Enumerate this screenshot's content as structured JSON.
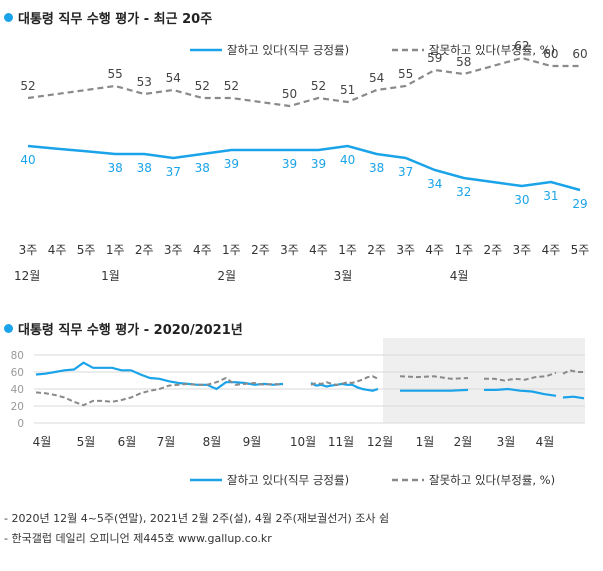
{
  "colors": {
    "approve": "#1aa3e8",
    "disapprove": "#8a8a8a",
    "shade": "#efefef",
    "grid": "#d8d8d8"
  },
  "chart1": {
    "title": "대통령 직무 수행 평가 - 최근 20주",
    "legend": {
      "approve": "잘하고 있다(직무 긍정률)",
      "disapprove": "잘못하고 있다(부정률, %)"
    }
  },
  "chart2": {
    "title": "대통령 직무 수행 평가 - 2020/2021년",
    "legend": {
      "approve": "잘하고 있다(직무 긍정률)",
      "disapprove": "잘못하고 있다(부정률, %)"
    }
  },
  "notes": [
    "- 2020년 12월 4~5주(연말), 2021년 2월 2주(설), 4월 2주(재보궐선거) 조사 쉼",
    "- 한국갤럽 데일리 오피니언 제445호 www.gallup.co.kr"
  ],
  "chart_data": [
    {
      "type": "line",
      "title": "대통령 직무 수행 평가 - 최근 20주",
      "x": [
        "3주",
        "4주",
        "5주",
        "1주",
        "2주",
        "3주",
        "4주",
        "1주",
        "2주",
        "3주",
        "4주",
        "1주",
        "2주",
        "3주",
        "4주",
        "1주",
        "2주",
        "3주",
        "4주",
        "5주"
      ],
      "month_labels": [
        {
          "index": 0,
          "label": "12월"
        },
        {
          "index": 3,
          "label": "1월"
        },
        {
          "index": 7,
          "label": "2월"
        },
        {
          "index": 11,
          "label": "3월"
        },
        {
          "index": 15,
          "label": "4월"
        }
      ],
      "series": [
        {
          "name": "잘하고 있다(직무 긍정률)",
          "values": [
            40,
            null,
            null,
            38,
            38,
            37,
            38,
            39,
            null,
            39,
            39,
            40,
            38,
            37,
            34,
            32,
            null,
            30,
            31,
            29
          ]
        },
        {
          "name": "잘못하고 있다(부정률, %)",
          "values": [
            52,
            null,
            null,
            55,
            53,
            54,
            52,
            52,
            null,
            50,
            52,
            51,
            54,
            55,
            59,
            58,
            null,
            62,
            60,
            60
          ]
        }
      ],
      "ylim": [
        0,
        75
      ],
      "grid": false,
      "legend": "top-right"
    },
    {
      "type": "line",
      "title": "대통령 직무 수행 평가 - 2020/2021년",
      "x_ticks": [
        "4월",
        "5월",
        "6월",
        "7월",
        "8월",
        "9월",
        "10월",
        "11월",
        "12월",
        "1월",
        "2월",
        "3월",
        "4월"
      ],
      "y_ticks": [
        0,
        20,
        40,
        60,
        80
      ],
      "ylim": [
        0,
        85
      ],
      "series": [
        {
          "name": "잘하고 있다(직무 긍정률)",
          "segments": [
            [
              57,
              58,
              60,
              62,
              63,
              71,
              65,
              65,
              65,
              62,
              62,
              57,
              53,
              52,
              49,
              47,
              46,
              45,
              45,
              40,
              48,
              48,
              47,
              45,
              46,
              45,
              46
            ],
            [
              47,
              44,
              45,
              43,
              44,
              45,
              46,
              45,
              45,
              42,
              40,
              39,
              38,
              40
            ],
            [
              38,
              38,
              38,
              38,
              39
            ],
            [
              39,
              39,
              40,
              38,
              37,
              34,
              32
            ],
            [
              30,
              31,
              29
            ]
          ]
        },
        {
          "name": "잘못하고 있다(부정률, %)",
          "segments": [
            [
              36,
              35,
              33,
              30,
              25,
              21,
              26,
              26,
              25,
              27,
              30,
              35,
              38,
              40,
              44,
              45,
              46,
              45,
              45,
              48,
              53,
              45,
              46,
              47,
              45,
              46,
              45
            ],
            [
              45,
              47,
              46,
              48,
              46,
              45,
              46,
              48,
              47,
              49,
              51,
              54,
              55,
              52
            ],
            [
              55,
              54,
              55,
              52,
              53
            ],
            [
              52,
              52,
              50,
              52,
              51,
              54,
              55,
              59
            ],
            [
              58,
              62,
              60,
              60
            ]
          ]
        }
      ],
      "shaded_range": "12월 - 4월",
      "grid": true,
      "legend": "bottom-right"
    }
  ]
}
